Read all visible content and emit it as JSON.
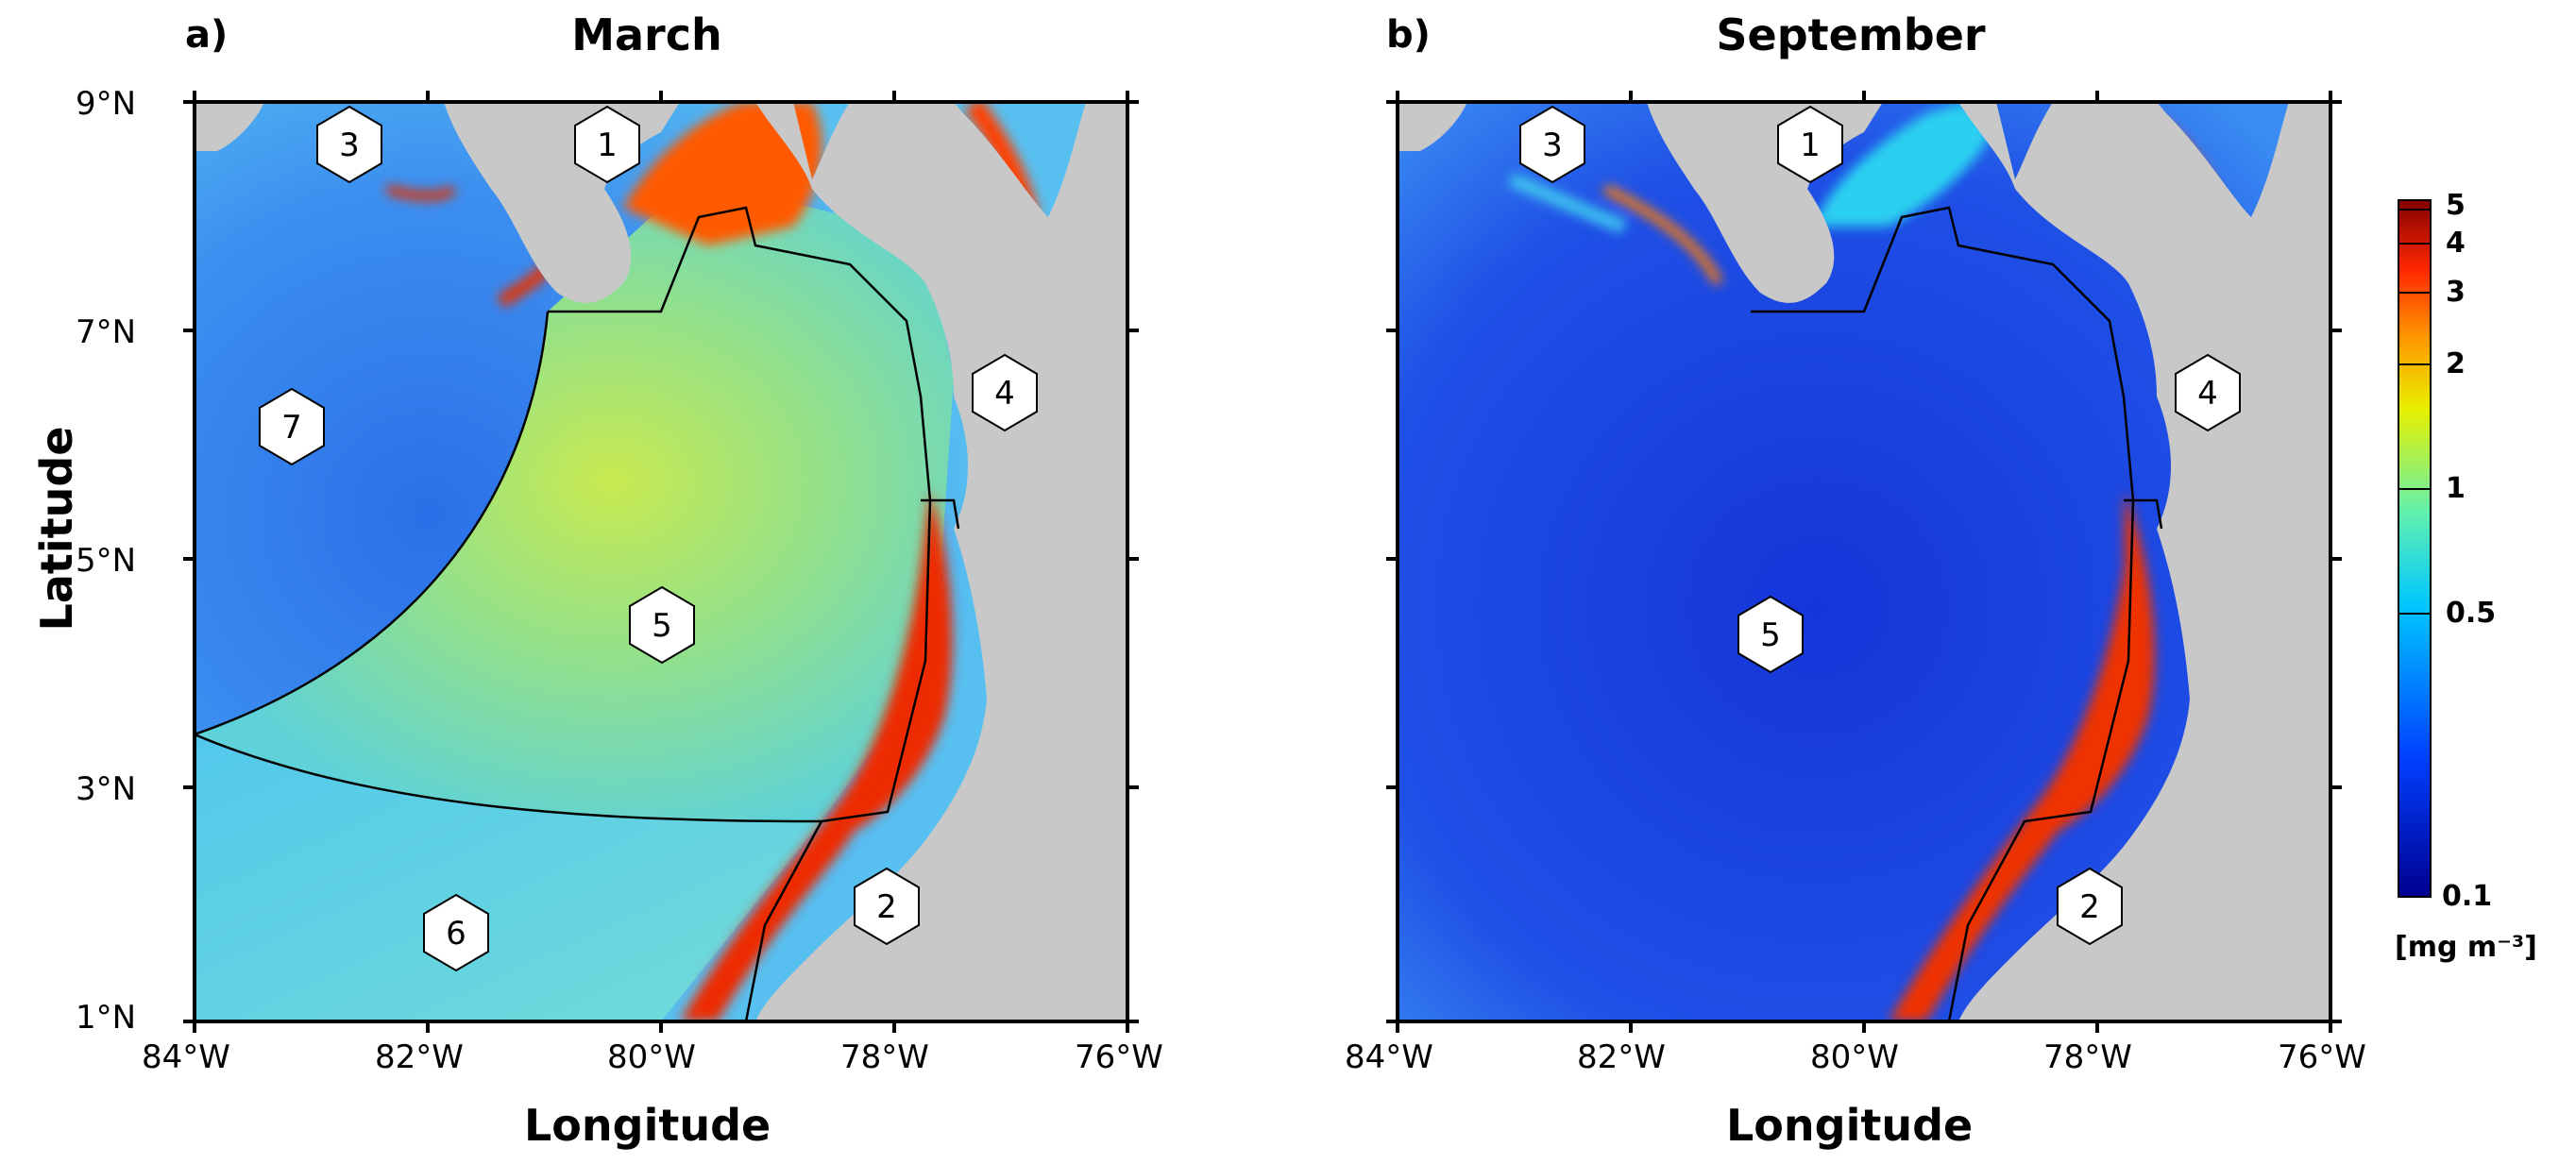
{
  "panels": [
    {
      "tag": "a)",
      "title": "March",
      "region_markers": [
        "1",
        "2",
        "3",
        "4",
        "5",
        "6",
        "7"
      ]
    },
    {
      "tag": "b)",
      "title": "September",
      "region_markers": [
        "1",
        "2",
        "3",
        "4",
        "5"
      ]
    }
  ],
  "axes": {
    "x_label": "Longitude",
    "y_label": "Latitude",
    "x_ticks": [
      "84°W",
      "82°W",
      "80°W",
      "78°W",
      "76°W"
    ],
    "y_ticks": [
      "9°N",
      "7°N",
      "5°N",
      "3°N",
      "1°N"
    ]
  },
  "colorbar": {
    "tick_labels": [
      "5",
      "4",
      "3",
      "2",
      "1",
      "0.5",
      "0.1"
    ],
    "unit": "[mg m⁻³]",
    "colors": [
      "#00008f",
      "#0040ff",
      "#00c0ff",
      "#60ffa0",
      "#e0f000",
      "#ff9000",
      "#ff2000",
      "#800000"
    ]
  },
  "colors": {
    "land": "#c8c8c8",
    "march_offshore": "#3a8cf0",
    "march_basin": "#8fe09a",
    "march_south": "#5fd4e8",
    "september_basin": "#1c46e0",
    "coastal_high": "#e01a00"
  }
}
